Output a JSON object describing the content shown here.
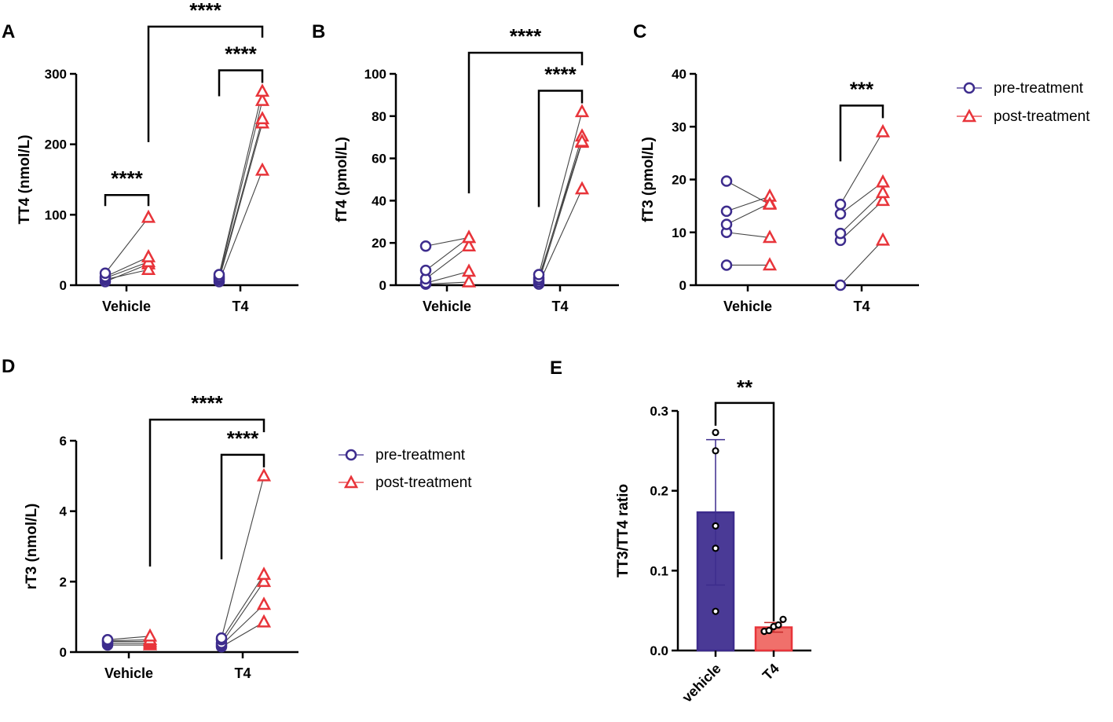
{
  "colors": {
    "pre": "#3d2c8d",
    "post": "#e8343a",
    "bar_vehicle": "#4a3a96",
    "bar_t4": "#f0706b",
    "point": "#000000"
  },
  "legend": {
    "pre": "pre-treatment",
    "post": "post-treatment"
  },
  "chart_data": [
    {
      "panel": "A",
      "type": "scatter",
      "ylabel": "TT4 (nmol/L)",
      "ylim": [
        0,
        300
      ],
      "yticks": [
        0,
        100,
        200,
        300
      ],
      "categories": [
        "Vehicle",
        "T4"
      ],
      "groups": [
        {
          "name": "Vehicle",
          "pairs": [
            [
              5,
              30
            ],
            [
              8,
              22
            ],
            [
              10,
              33
            ],
            [
              12,
              40
            ],
            [
              17,
              96
            ]
          ]
        },
        {
          "name": "T4",
          "pairs": [
            [
              5,
              163
            ],
            [
              8,
              230
            ],
            [
              10,
              236
            ],
            [
              12,
              262
            ],
            [
              15,
              275
            ]
          ]
        }
      ],
      "sig": [
        {
          "label": "****",
          "from": "Vehicle.pre",
          "to": "Vehicle.post",
          "y": 128
        },
        {
          "label": "****",
          "from": "T4.pre",
          "to": "T4.post",
          "y": 305
        },
        {
          "label": "****",
          "from": "Vehicle.post",
          "to": "T4.post",
          "y": 367
        }
      ]
    },
    {
      "panel": "B",
      "type": "scatter",
      "ylabel": "fT4 (pmol/L)",
      "ylim": [
        0,
        100
      ],
      "yticks": [
        0,
        20,
        40,
        60,
        80,
        100
      ],
      "categories": [
        "Vehicle",
        "T4"
      ],
      "groups": [
        {
          "name": "Vehicle",
          "pairs": [
            [
              0.5,
              1.5
            ],
            [
              1,
              6.5
            ],
            [
              3,
              18.5
            ],
            [
              7,
              22.5
            ],
            [
              18.5,
              22.5
            ]
          ]
        },
        {
          "name": "T4",
          "pairs": [
            [
              0.5,
              45.5
            ],
            [
              1.5,
              67.5
            ],
            [
              2.5,
              70.5
            ],
            [
              3.5,
              68
            ],
            [
              5,
              82
            ]
          ]
        }
      ],
      "sig": [
        {
          "label": "****",
          "from": "T4.pre",
          "to": "T4.post",
          "y": 92
        },
        {
          "label": "****",
          "from": "Vehicle.post",
          "to": "T4.post",
          "y": 110
        }
      ]
    },
    {
      "panel": "C",
      "type": "scatter",
      "ylabel": "fT3 (pmol/L)",
      "ylim": [
        0,
        40
      ],
      "yticks": [
        0,
        10,
        20,
        30,
        40
      ],
      "categories": [
        "Vehicle",
        "T4"
      ],
      "groups": [
        {
          "name": "Vehicle",
          "pairs": [
            [
              3.8,
              3.8
            ],
            [
              10,
              9
            ],
            [
              11.5,
              15.5
            ],
            [
              14,
              16.8
            ],
            [
              19.7,
              15.3
            ]
          ]
        },
        {
          "name": "T4",
          "pairs": [
            [
              0,
              8.5
            ],
            [
              8.5,
              16
            ],
            [
              9.8,
              17.5
            ],
            [
              13.5,
              19.5
            ],
            [
              15.3,
              29
            ]
          ]
        }
      ],
      "sig": [
        {
          "label": "***",
          "from": "T4.pre",
          "to": "T4.post",
          "y": 34
        }
      ]
    },
    {
      "panel": "D",
      "type": "scatter",
      "ylabel": "rT3 (nmol/L)",
      "ylim": [
        0,
        6
      ],
      "yticks": [
        0,
        2,
        4,
        6
      ],
      "categories": [
        "Vehicle",
        "T4"
      ],
      "groups": [
        {
          "name": "Vehicle",
          "pairs": [
            [
              0.2,
              0.2
            ],
            [
              0.25,
              0.25
            ],
            [
              0.3,
              0.3
            ],
            [
              0.32,
              0.35
            ],
            [
              0.35,
              0.45
            ]
          ]
        },
        {
          "name": "T4",
          "pairs": [
            [
              0.15,
              0.85
            ],
            [
              0.2,
              1.35
            ],
            [
              0.25,
              2.0
            ],
            [
              0.35,
              2.2
            ],
            [
              0.4,
              5.0
            ]
          ]
        }
      ],
      "sig": [
        {
          "label": "****",
          "from": "T4.pre",
          "to": "T4.post",
          "y": 5.6
        },
        {
          "label": "****",
          "from": "Vehicle.post",
          "to": "T4.post",
          "y": 6.6
        }
      ]
    },
    {
      "panel": "E",
      "type": "bar",
      "ylabel": "TT3/TT4 ratio",
      "ylim": [
        0,
        0.3
      ],
      "yticks": [
        "0.0",
        "0.1",
        "0.2",
        "0.3"
      ],
      "categories": [
        "vehicle",
        "T4"
      ],
      "values": [
        0.173,
        0.029
      ],
      "error": [
        0.091,
        0.006
      ],
      "points": [
        [
          0.049,
          0.128,
          0.156,
          0.25,
          0.273
        ],
        [
          0.024,
          0.025,
          0.03,
          0.032,
          0.039
        ]
      ],
      "sig": [
        {
          "label": "**",
          "from": "vehicle",
          "to": "T4",
          "y": 0.31
        }
      ]
    }
  ]
}
